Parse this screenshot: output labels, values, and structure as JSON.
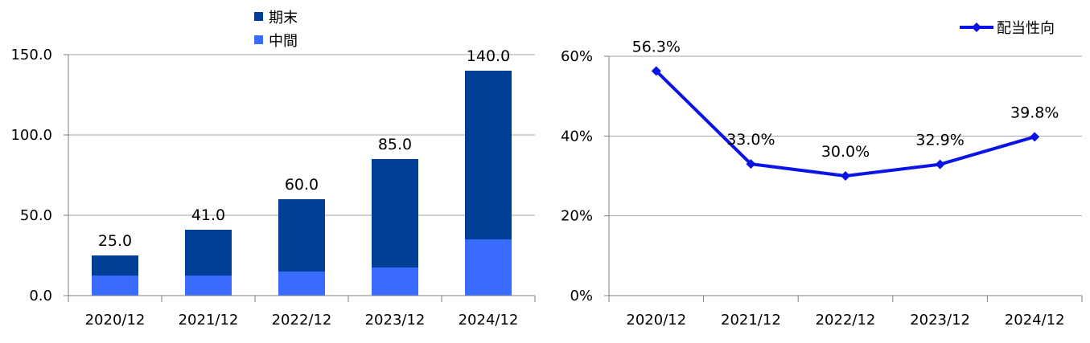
{
  "colors": {
    "kimatsu": "#003f98",
    "chukan": "#3a6bff",
    "payout_line": "#0a14e6",
    "grid": "#a6a6a6",
    "axis": "#7f7f7f"
  },
  "chart_data": [
    {
      "type": "bar",
      "stacked": true,
      "categories": [
        "2020/12",
        "2021/12",
        "2022/12",
        "2023/12",
        "2024/12"
      ],
      "series": [
        {
          "name": "中間",
          "values": [
            12.5,
            12.5,
            15.0,
            17.5,
            35.0
          ]
        },
        {
          "name": "期末",
          "values": [
            12.5,
            28.5,
            45.0,
            67.5,
            105.0
          ]
        }
      ],
      "totals": [
        25.0,
        41.0,
        60.0,
        85.0,
        140.0
      ],
      "total_labels": [
        "25.0",
        "41.0",
        "60.0",
        "85.0",
        "140.0"
      ],
      "ylim": [
        0,
        150
      ],
      "yticks": [
        0,
        50,
        100,
        150
      ],
      "ytick_labels": [
        "0.0",
        "50.0",
        "100.0",
        "150.0"
      ],
      "grid": true,
      "legend": {
        "placement": "top-center",
        "entries": [
          "期末",
          "中間"
        ]
      }
    },
    {
      "type": "line",
      "categories": [
        "2020/12",
        "2021/12",
        "2022/12",
        "2023/12",
        "2024/12"
      ],
      "series": [
        {
          "name": "配当性向",
          "values": [
            56.3,
            33.0,
            30.0,
            32.9,
            39.8
          ]
        }
      ],
      "value_labels": [
        "56.3%",
        "33.0%",
        "30.0%",
        "32.9%",
        "39.8%"
      ],
      "ylim": [
        0,
        60
      ],
      "yticks": [
        0,
        20,
        40,
        60
      ],
      "ytick_labels": [
        "0%",
        "20%",
        "40%",
        "60%"
      ],
      "grid": true,
      "marker": "diamond",
      "legend": {
        "placement": "top-right",
        "entries": [
          "配当性向"
        ]
      }
    }
  ]
}
